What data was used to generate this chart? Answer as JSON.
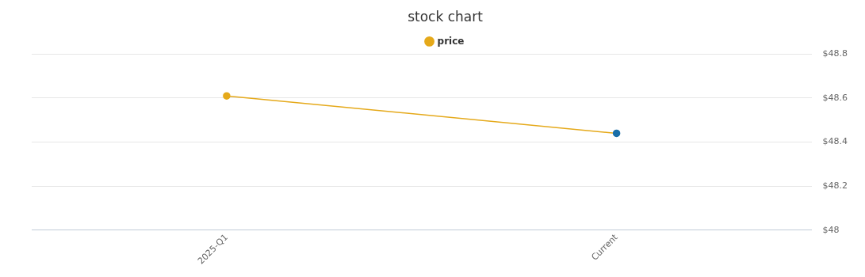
{
  "chart_data": {
    "type": "line",
    "title": "stock chart",
    "categories": [
      "2025-Q1",
      "Current"
    ],
    "series": [
      {
        "name": "price",
        "color": "#e5a91a",
        "colors": [
          "#e5a91a",
          "#1a6fa8"
        ],
        "values": [
          48.61,
          48.44
        ]
      }
    ],
    "ylim": [
      48,
      48.8
    ],
    "yticks": [
      {
        "value": 48,
        "label": "$48"
      },
      {
        "value": 48.2,
        "label": "$48.2"
      },
      {
        "value": 48.4,
        "label": "$48.4"
      },
      {
        "value": 48.6,
        "label": "$48.6"
      },
      {
        "value": 48.8,
        "label": "$48.8"
      }
    ],
    "grid": "y",
    "legend": "top",
    "marker": "circle",
    "line_style": "solid"
  }
}
